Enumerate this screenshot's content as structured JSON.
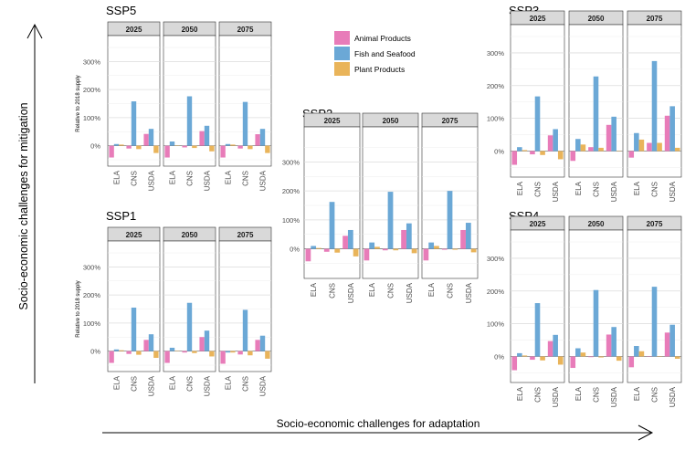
{
  "figure": {
    "y_axis_label": "Socio-economic challenges for mitigation",
    "x_axis_label": "Socio-economic challenges for adaptation",
    "facet_ylabel": "Relative to 2018 supply",
    "legend": [
      {
        "name": "Animal Products",
        "color": "#E87CB9"
      },
      {
        "name": "Fish and Seafood",
        "color": "#6BA8D6"
      },
      {
        "name": "Plant Products",
        "color": "#E9B45A"
      }
    ]
  },
  "chart_data": [
    {
      "type": "bar",
      "title": "SSP5",
      "ylabel": "Relative to 2018 supply",
      "ylim": [
        -0.5,
        3.5
      ],
      "y_ticks": [
        "0%",
        "100%",
        "200%",
        "300%"
      ],
      "categories": [
        "ELA",
        "CNS",
        "USDA"
      ],
      "facets": [
        {
          "label": "2025",
          "series": [
            {
              "name": "Animal Products",
              "values": [
                -0.42,
                -0.1,
                0.42
              ]
            },
            {
              "name": "Fish and Seafood",
              "values": [
                0.06,
                1.58,
                0.6
              ]
            },
            {
              "name": "Plant Products",
              "values": [
                0.04,
                -0.12,
                -0.26
              ]
            }
          ]
        },
        {
          "label": "2050",
          "series": [
            {
              "name": "Animal Products",
              "values": [
                -0.42,
                -0.06,
                0.52
              ]
            },
            {
              "name": "Fish and Seafood",
              "values": [
                0.15,
                1.76,
                0.71
              ]
            },
            {
              "name": "Plant Products",
              "values": [
                0.01,
                -0.08,
                -0.2
              ]
            }
          ]
        },
        {
          "label": "2075",
          "series": [
            {
              "name": "Animal Products",
              "values": [
                -0.42,
                -0.1,
                0.41
              ]
            },
            {
              "name": "Fish and Seafood",
              "values": [
                0.06,
                1.56,
                0.6
              ]
            },
            {
              "name": "Plant Products",
              "values": [
                0.04,
                -0.12,
                -0.26
              ]
            }
          ]
        }
      ]
    },
    {
      "type": "bar",
      "title": "SSP1",
      "ylabel": "Relative to 2018 supply",
      "ylim": [
        -0.5,
        3.5
      ],
      "y_ticks": [
        "0%",
        "100%",
        "200%",
        "300%"
      ],
      "categories": [
        "ELA",
        "CNS",
        "USDA"
      ],
      "facets": [
        {
          "label": "2025",
          "series": [
            {
              "name": "Animal Products",
              "values": [
                -0.42,
                -0.1,
                0.4
              ]
            },
            {
              "name": "Fish and Seafood",
              "values": [
                0.06,
                1.55,
                0.6
              ]
            },
            {
              "name": "Plant Products",
              "values": [
                0.03,
                -0.13,
                -0.24
              ]
            }
          ]
        },
        {
          "label": "2050",
          "series": [
            {
              "name": "Animal Products",
              "values": [
                -0.42,
                -0.05,
                0.5
              ]
            },
            {
              "name": "Fish and Seafood",
              "values": [
                0.12,
                1.72,
                0.73
              ]
            },
            {
              "name": "Plant Products",
              "values": [
                0.01,
                -0.07,
                -0.19
              ]
            }
          ]
        },
        {
          "label": "2075",
          "series": [
            {
              "name": "Animal Products",
              "values": [
                -0.45,
                -0.12,
                0.4
              ]
            },
            {
              "name": "Fish and Seafood",
              "values": [
                -0.05,
                1.47,
                0.55
              ]
            },
            {
              "name": "Plant Products",
              "values": [
                -0.05,
                -0.15,
                -0.27
              ]
            }
          ]
        }
      ]
    },
    {
      "type": "bar",
      "title": "SSP2",
      "ylim": [
        -0.8,
        3.8
      ],
      "y_ticks": [
        "0%",
        "100%",
        "200%",
        "300%"
      ],
      "categories": [
        "ELA",
        "CNS",
        "USDA"
      ],
      "facets": [
        {
          "label": "2025",
          "series": [
            {
              "name": "Animal Products",
              "values": [
                -0.43,
                -0.1,
                0.45
              ]
            },
            {
              "name": "Fish and Seafood",
              "values": [
                0.1,
                1.62,
                0.65
              ]
            },
            {
              "name": "Plant Products",
              "values": [
                0.03,
                -0.13,
                -0.26
              ]
            }
          ]
        },
        {
          "label": "2050",
          "series": [
            {
              "name": "Animal Products",
              "values": [
                -0.4,
                -0.05,
                0.65
              ]
            },
            {
              "name": "Fish and Seafood",
              "values": [
                0.22,
                1.97,
                0.88
              ]
            },
            {
              "name": "Plant Products",
              "values": [
                0.07,
                -0.05,
                -0.15
              ]
            }
          ]
        },
        {
          "label": "2075",
          "series": [
            {
              "name": "Animal Products",
              "values": [
                -0.4,
                -0.03,
                0.65
              ]
            },
            {
              "name": "Fish and Seafood",
              "values": [
                0.22,
                2.0,
                0.9
              ]
            },
            {
              "name": "Plant Products",
              "values": [
                0.1,
                -0.03,
                -0.12
              ]
            }
          ]
        }
      ]
    },
    {
      "type": "bar",
      "title": "SSP3",
      "ylim": [
        -0.6,
        3.5
      ],
      "y_ticks": [
        "0%",
        "100%",
        "200%",
        "300%"
      ],
      "categories": [
        "ELA",
        "CNS",
        "USDA"
      ],
      "facets": [
        {
          "label": "2025",
          "series": [
            {
              "name": "Animal Products",
              "values": [
                -0.42,
                -0.1,
                0.48
              ]
            },
            {
              "name": "Fish and Seafood",
              "values": [
                0.12,
                1.67,
                0.67
              ]
            },
            {
              "name": "Plant Products",
              "values": [
                0.03,
                -0.12,
                -0.25
              ]
            }
          ]
        },
        {
          "label": "2050",
          "series": [
            {
              "name": "Animal Products",
              "values": [
                -0.3,
                0.12,
                0.8
              ]
            },
            {
              "name": "Fish and Seafood",
              "values": [
                0.37,
                2.28,
                1.05
              ]
            },
            {
              "name": "Plant Products",
              "values": [
                0.2,
                0.1,
                0.01
              ]
            }
          ]
        },
        {
          "label": "2075",
          "series": [
            {
              "name": "Animal Products",
              "values": [
                -0.2,
                0.25,
                1.08
              ]
            },
            {
              "name": "Fish and Seafood",
              "values": [
                0.55,
                2.75,
                1.37
              ]
            },
            {
              "name": "Plant Products",
              "values": [
                0.35,
                0.25,
                0.1
              ]
            }
          ]
        }
      ]
    },
    {
      "type": "bar",
      "title": "SSP4",
      "ylim": [
        -0.6,
        3.5
      ],
      "y_ticks": [
        "0%",
        "100%",
        "200%",
        "300%"
      ],
      "categories": [
        "ELA",
        "CNS",
        "USDA"
      ],
      "facets": [
        {
          "label": "2025",
          "series": [
            {
              "name": "Animal Products",
              "values": [
                -0.42,
                -0.1,
                0.47
              ]
            },
            {
              "name": "Fish and Seafood",
              "values": [
                0.1,
                1.63,
                0.66
              ]
            },
            {
              "name": "Plant Products",
              "values": [
                0.03,
                -0.12,
                -0.25
              ]
            }
          ]
        },
        {
          "label": "2050",
          "series": [
            {
              "name": "Animal Products",
              "values": [
                -0.35,
                -0.02,
                0.67
              ]
            },
            {
              "name": "Fish and Seafood",
              "values": [
                0.25,
                2.03,
                0.9
              ]
            },
            {
              "name": "Plant Products",
              "values": [
                0.12,
                -0.03,
                -0.13
              ]
            }
          ]
        },
        {
          "label": "2075",
          "series": [
            {
              "name": "Animal Products",
              "values": [
                -0.33,
                0.0,
                0.73
              ]
            },
            {
              "name": "Fish and Seafood",
              "values": [
                0.32,
                2.13,
                0.97
              ]
            },
            {
              "name": "Plant Products",
              "values": [
                0.16,
                0.0,
                -0.07
              ]
            }
          ]
        }
      ]
    }
  ]
}
